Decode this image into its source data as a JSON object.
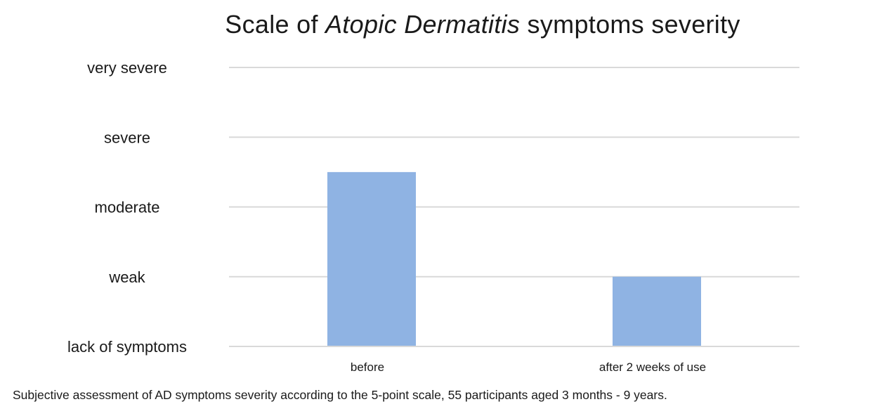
{
  "chart_data": {
    "type": "bar",
    "title_prefix": "Scale of ",
    "title_emphasis": "Atopic Dermatitis",
    "title_suffix": " symptoms severity",
    "categories": [
      "before",
      "after 2 weeks of use"
    ],
    "values": [
      2.5,
      1
    ],
    "ylim": [
      0,
      4
    ],
    "y_tick_labels": [
      "lack of symptoms",
      "weak",
      "moderate",
      "severe",
      "very severe"
    ],
    "bar_color": "#8fb3e3",
    "grid": true,
    "legend": "none"
  },
  "caption": "Subjective assessment of AD symptoms severity according to the 5-point scale, 55 participants aged 3 months - 9 years."
}
